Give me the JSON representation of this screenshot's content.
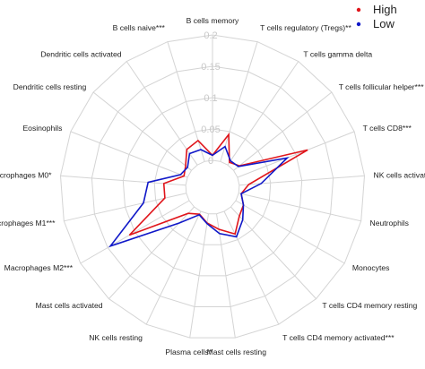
{
  "chart_data": {
    "type": "radar",
    "title": "",
    "categories": [
      "B cells memory",
      "T cells regulatory (Tregs)**",
      "T cells gamma delta",
      "T cells follicular helper***",
      "T cells CD8***",
      "NK cells activated",
      "Neutrophils",
      "Monocytes",
      "T cells CD4 memory resting",
      "T cells CD4 memory activated***",
      "Mast cells resting",
      "Plasma cells*",
      "NK cells resting",
      "Mast cells activated",
      "Macrophages M2***",
      "Macrophages M1***",
      "Macrophages M0*",
      "Eosinophils",
      "Dendritic cells resting",
      "Dendritic cells activated",
      "B cells naive***"
    ],
    "radial_ticks": [
      "0",
      "0.05",
      "0.1",
      "0.15",
      "0.2"
    ],
    "rlim": [
      0,
      0.2
    ],
    "grid": true,
    "legend": {
      "position": "top-right",
      "entries": [
        "High",
        "Low"
      ]
    },
    "series": [
      {
        "name": "High",
        "color": "#e0151b",
        "values": [
          0.008,
          0.045,
          0.005,
          0.012,
          0.12,
          0.015,
          0.004,
          0.014,
          0.02,
          0.04,
          0.025,
          0.015,
          0.005,
          0.014,
          0.11,
          0.035,
          0.035,
          0.006,
          0.012,
          0.03,
          0.035
        ]
      },
      {
        "name": "Low",
        "color": "#1018c8",
        "values": [
          0.008,
          0.025,
          0.008,
          0.01,
          0.085,
          0.035,
          0.004,
          0.014,
          0.028,
          0.045,
          0.032,
          0.016,
          0.006,
          0.035,
          0.145,
          0.07,
          0.06,
          0.012,
          0.008,
          0.022,
          0.02
        ]
      }
    ]
  }
}
